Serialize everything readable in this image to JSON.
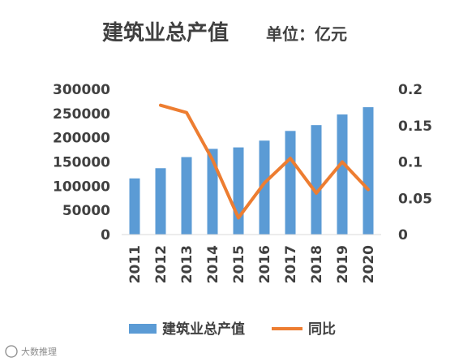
{
  "chart_data": {
    "type": "bar",
    "title": "建筑业总产值",
    "subtitle": "单位：亿元",
    "categories": [
      "2011",
      "2012",
      "2013",
      "2014",
      "2015",
      "2016",
      "2017",
      "2018",
      "2019",
      "2020"
    ],
    "series": [
      {
        "name": "建筑业总产值",
        "type": "bar",
        "axis": "left",
        "color": "#5b9bd5",
        "values": [
          116000,
          137000,
          160000,
          177000,
          180000,
          194000,
          214000,
          226000,
          248000,
          263000
        ]
      },
      {
        "name": "同比",
        "type": "line",
        "axis": "right",
        "color": "#ed7d31",
        "values": [
          null,
          0.178,
          0.168,
          0.103,
          0.023,
          0.071,
          0.105,
          0.057,
          0.1,
          0.062
        ]
      }
    ],
    "y_left": {
      "min": 0,
      "max": 300000,
      "ticks": [
        0,
        50000,
        100000,
        150000,
        200000,
        250000,
        300000
      ],
      "tick_labels": [
        "0",
        "50000",
        "100000",
        "150000",
        "200000",
        "250000",
        "300000"
      ]
    },
    "y_right": {
      "min": 0,
      "max": 0.2,
      "ticks": [
        0,
        0.05,
        0.1,
        0.15,
        0.2
      ],
      "tick_labels": [
        "0",
        "0.05",
        "0.1",
        "0.15",
        "0.2"
      ]
    },
    "grid": false,
    "legend_position": "bottom"
  },
  "watermark": "大数推理"
}
